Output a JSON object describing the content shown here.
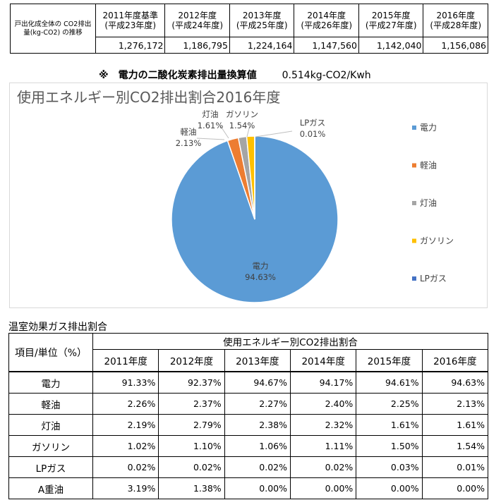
{
  "top_table": {
    "label": "戸出化成全体の CO2排出量(kg-CO2) の推移",
    "years": [
      {
        "year": "2011年度基準",
        "sub": "(平成23年度)",
        "value": "1,276,172"
      },
      {
        "year": "2012年度",
        "sub": "(平成24年度)",
        "value": "1,186,795"
      },
      {
        "year": "2013年度",
        "sub": "(平成25年度)",
        "value": "1,224,164"
      },
      {
        "year": "2014年度",
        "sub": "(平成26年度)",
        "value": "1,147,560"
      },
      {
        "year": "2015年度",
        "sub": "(平成27年度)",
        "value": "1,142,040"
      },
      {
        "year": "2016年度",
        "sub": "(平成28年度)",
        "value": "1,156,086"
      }
    ]
  },
  "conversion": {
    "label": "※　電力の二酸化炭素排出量換算値",
    "value": "0.514kg-CO2/Kwh"
  },
  "chart_data": {
    "type": "pie",
    "title": "使用エネルギー別CO2排出割合2016年度",
    "slices": [
      {
        "name": "電力",
        "value": 94.63,
        "label": "94.63%",
        "color": "#5b9bd5"
      },
      {
        "name": "軽油",
        "value": 2.13,
        "label": "2.13%",
        "color": "#ed7d31"
      },
      {
        "name": "灯油",
        "value": 1.61,
        "label": "1.61%",
        "color": "#a5a5a5"
      },
      {
        "name": "ガソリン",
        "value": 1.54,
        "label": "1.54%",
        "color": "#ffc000"
      },
      {
        "name": "LPガス",
        "value": 0.01,
        "label": "0.01%",
        "color": "#4472c4"
      }
    ],
    "legend": [
      "電力",
      "軽油",
      "灯油",
      "ガソリン",
      "LPガス"
    ],
    "legend_position": "right"
  },
  "emissions_table": {
    "section_title": "温室効果ガス排出割合",
    "row_header": "項目/単位（%）",
    "group_header": "使用エネルギー別CO2排出割合",
    "years": [
      "2011年度",
      "2012年度",
      "2013年度",
      "2014年度",
      "2015年度",
      "2016年度"
    ],
    "rows": [
      {
        "item": "電力",
        "values": [
          "91.33%",
          "92.37%",
          "94.67%",
          "94.17%",
          "94.61%",
          "94.63%"
        ]
      },
      {
        "item": "軽油",
        "values": [
          "2.26%",
          "2.37%",
          "2.27%",
          "2.40%",
          "2.25%",
          "2.13%"
        ]
      },
      {
        "item": "灯油",
        "values": [
          "2.19%",
          "2.79%",
          "2.38%",
          "2.32%",
          "1.61%",
          "1.61%"
        ]
      },
      {
        "item": "ガソリン",
        "values": [
          "1.02%",
          "1.10%",
          "1.06%",
          "1.11%",
          "1.50%",
          "1.54%"
        ]
      },
      {
        "item": "LPガス",
        "values": [
          "0.02%",
          "0.02%",
          "0.02%",
          "0.02%",
          "0.03%",
          "0.01%"
        ]
      },
      {
        "item": "A重油",
        "values": [
          "3.19%",
          "1.38%",
          "0.00%",
          "0.00%",
          "0.00%",
          "0.00%"
        ]
      }
    ]
  }
}
